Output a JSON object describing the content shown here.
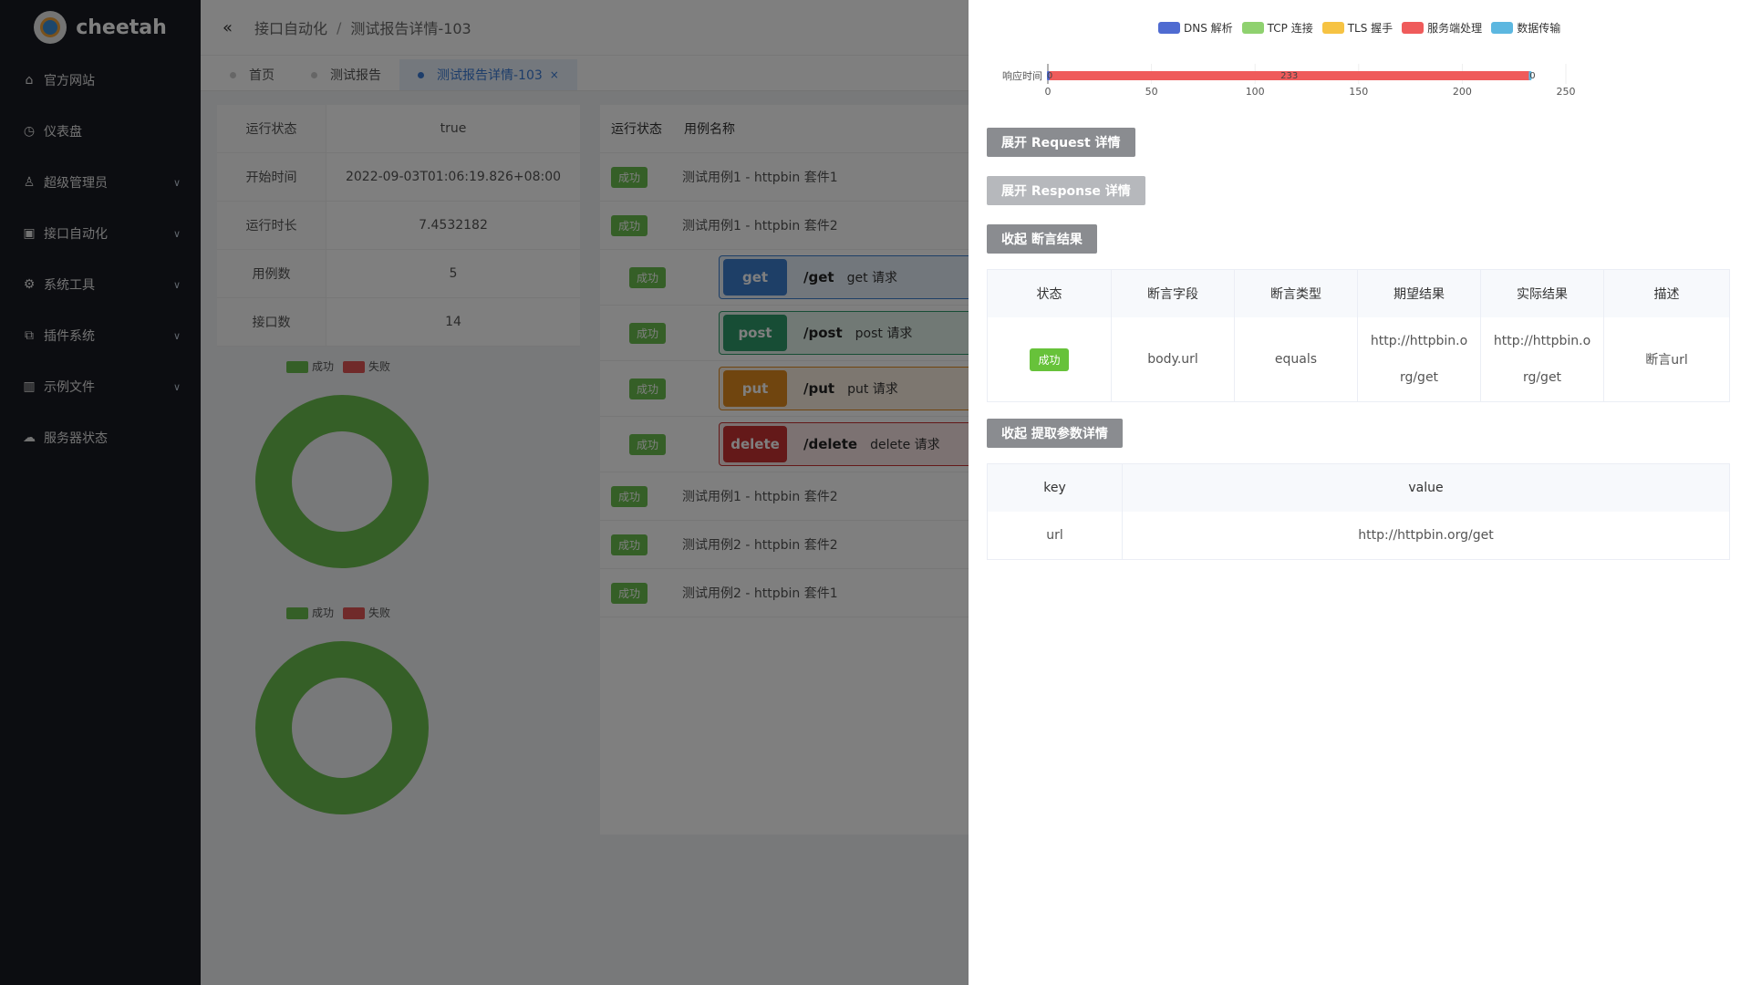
{
  "sidebar": {
    "brand": "cheetah",
    "items": [
      {
        "label": "官方网站",
        "icon": "home-icon",
        "has_children": false
      },
      {
        "label": "仪表盘",
        "icon": "dashboard-icon",
        "has_children": false
      },
      {
        "label": "超级管理员",
        "icon": "user-icon",
        "has_children": true
      },
      {
        "label": "接口自动化",
        "icon": "briefcase-icon",
        "has_children": true
      },
      {
        "label": "系统工具",
        "icon": "gear-icon",
        "has_children": true
      },
      {
        "label": "插件系统",
        "icon": "plugin-icon",
        "has_children": true
      },
      {
        "label": "示例文件",
        "icon": "chart-icon",
        "has_children": true
      },
      {
        "label": "服务器状态",
        "icon": "cloud-icon",
        "has_children": false
      }
    ]
  },
  "header": {
    "breadcrumb": [
      "接口自动化",
      "测试报告详情-103"
    ]
  },
  "tabs": [
    {
      "label": "首页",
      "active": false
    },
    {
      "label": "测试报告",
      "active": false
    },
    {
      "label": "测试报告详情-103",
      "active": true
    }
  ],
  "report_info": [
    {
      "key": "运行状态",
      "value": "true"
    },
    {
      "key": "开始时间",
      "value": "2022-09-03T01:06:19.826+08:00"
    },
    {
      "key": "运行时长",
      "value": "7.4532182"
    },
    {
      "key": "用例数",
      "value": "5"
    },
    {
      "key": "接口数",
      "value": "14"
    }
  ],
  "donut_legend": {
    "success": "成功",
    "fail": "失败"
  },
  "cases": {
    "headers": [
      "运行状态",
      "用例名称"
    ],
    "rows_before": [
      {
        "status": "成功",
        "name": "测试用例1 - httpbin 套件1"
      },
      {
        "status": "成功",
        "name": "测试用例1 - httpbin 套件2"
      }
    ],
    "apis": [
      {
        "status": "成功",
        "method": "get",
        "path": "/get",
        "desc": "get 请求",
        "color": "#3d7ecf"
      },
      {
        "status": "成功",
        "method": "post",
        "path": "/post",
        "desc": "post 请求",
        "color": "#2e9b6a"
      },
      {
        "status": "成功",
        "method": "put",
        "path": "/put",
        "desc": "put 请求",
        "color": "#e08a1e"
      },
      {
        "status": "成功",
        "method": "delete",
        "path": "/delete",
        "desc": "delete 请求",
        "color": "#c93232"
      }
    ],
    "rows_after": [
      {
        "status": "成功",
        "name": "测试用例1 - httpbin 套件2"
      },
      {
        "status": "成功",
        "name": "测试用例2 - httpbin 套件2"
      },
      {
        "status": "成功",
        "name": "测试用例2 - httpbin 套件1"
      }
    ]
  },
  "drawer": {
    "timeline_legend": [
      {
        "label": "DNS 解析",
        "color": "#4f6bd1"
      },
      {
        "label": "TCP 连接",
        "color": "#8fd16f"
      },
      {
        "label": "TLS 握手",
        "color": "#f6c343"
      },
      {
        "label": "服务端处理",
        "color": "#ef5b5b"
      },
      {
        "label": "数据传输",
        "color": "#5cb7e0"
      }
    ],
    "buttons": {
      "request": "展开 Request 详情",
      "response": "展开 Response 详情",
      "assert": "收起 断言结果",
      "extract": "收起 提取参数详情"
    },
    "assert_table": {
      "headers": [
        "状态",
        "断言字段",
        "断言类型",
        "期望结果",
        "实际结果",
        "描述"
      ],
      "row": {
        "status": "成功",
        "field": "body.url",
        "type": "equals",
        "expected": "http://httpbin.org/get",
        "actual": "http://httpbin.org/get",
        "desc": "断言url"
      }
    },
    "extract_table": {
      "headers": [
        "key",
        "value"
      ],
      "row": {
        "key": "url",
        "value": "http://httpbin.org/get"
      }
    }
  },
  "chart_data": {
    "type": "bar",
    "orientation": "horizontal",
    "categories": [
      "响应时间"
    ],
    "series": [
      {
        "name": "DNS 解析",
        "values": [
          0
        ]
      },
      {
        "name": "TCP 连接",
        "values": [
          0
        ]
      },
      {
        "name": "TLS 握手",
        "values": [
          0
        ]
      },
      {
        "name": "服务端处理",
        "values": [
          233
        ]
      },
      {
        "name": "数据传输",
        "values": [
          0
        ]
      }
    ],
    "data_labels": [
      "0",
      "233",
      "0"
    ],
    "xlim": [
      0,
      250
    ],
    "xticks": [
      "0",
      "50",
      "100",
      "150",
      "200",
      "250"
    ],
    "stacked": true,
    "legend": "top"
  }
}
